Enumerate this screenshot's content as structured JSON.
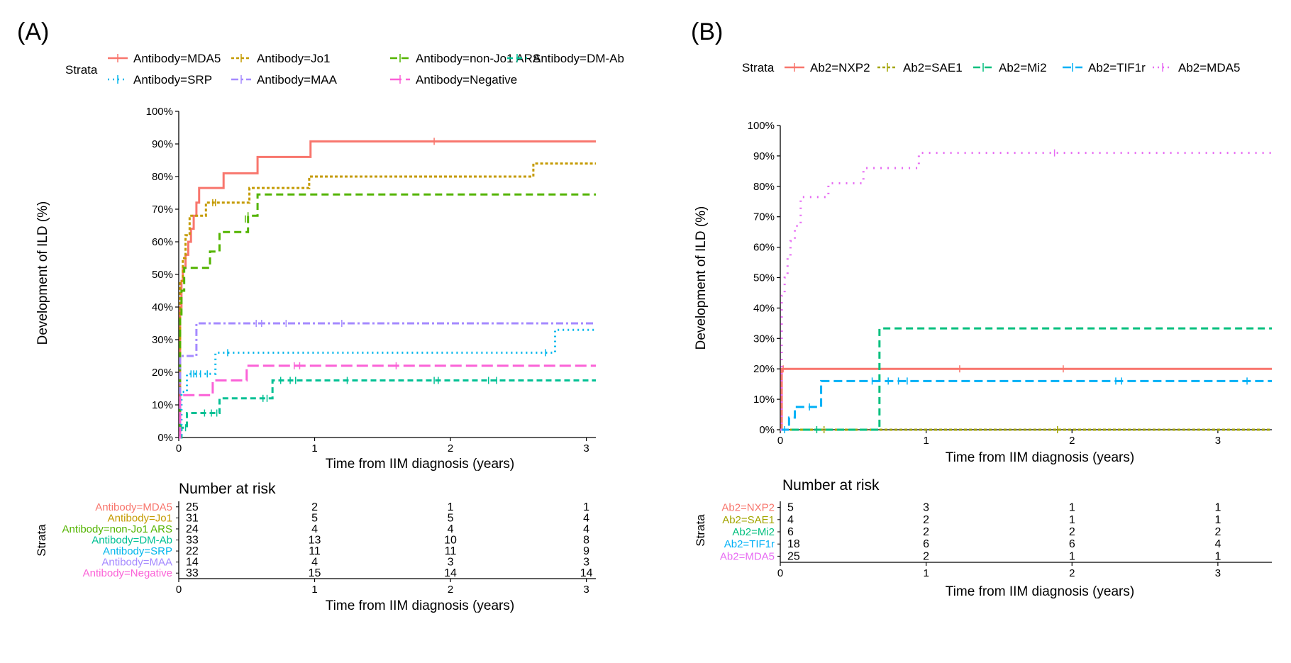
{
  "panels": [
    {
      "label": "(A)",
      "legend_title": "Strata",
      "ylabel": "Development of ILD (%)",
      "xlabel": "Time from IIM diagnosis (years)",
      "risk_title": "Number at risk",
      "risk_ylabel": "Strata",
      "risk_xlabel": "Time from IIM diagnosis (years)",
      "x_ticks": [
        "0",
        "1",
        "2",
        "3"
      ],
      "y_ticks": [
        "0%",
        "10%",
        "20%",
        "30%",
        "40%",
        "50%",
        "60%",
        "70%",
        "80%",
        "90%",
        "100%"
      ]
    },
    {
      "label": "(B)",
      "legend_title": "Strata",
      "ylabel": "Development of ILD (%)",
      "xlabel": "Time from IIM diagnosis (years)",
      "risk_title": "Number at risk",
      "risk_ylabel": "Strata",
      "risk_xlabel": "Time from IIM diagnosis (years)",
      "x_ticks": [
        "0",
        "1",
        "2",
        "3"
      ],
      "y_ticks": [
        "0%",
        "10%",
        "20%",
        "30%",
        "40%",
        "50%",
        "60%",
        "70%",
        "80%",
        "90%",
        "100%"
      ]
    }
  ],
  "chart_data": [
    {
      "type": "line",
      "subtype": "kaplan-meier-cumulative-incidence",
      "title": "(A)",
      "xlabel": "Time from IIM diagnosis (years)",
      "ylabel": "Development of ILD (%)",
      "xlim": [
        0,
        3.07
      ],
      "ylim": [
        0,
        100
      ],
      "x_ticks": [
        0,
        1,
        2,
        3
      ],
      "y_ticks": [
        0,
        10,
        20,
        30,
        40,
        50,
        60,
        70,
        80,
        90,
        100
      ],
      "legend_title": "Strata",
      "legend_position": "top",
      "risk_times": [
        0,
        1,
        2,
        3
      ],
      "series": [
        {
          "name": "Antibody=MDA5",
          "color": "#F8766D",
          "dash": "",
          "steps": [
            [
              0,
              0
            ],
            [
              0.01,
              40
            ],
            [
              0.02,
              48
            ],
            [
              0.03,
              52
            ],
            [
              0.05,
              56
            ],
            [
              0.07,
              60
            ],
            [
              0.09,
              64
            ],
            [
              0.11,
              68
            ],
            [
              0.13,
              72
            ],
            [
              0.15,
              76.5
            ],
            [
              0.33,
              81
            ],
            [
              0.58,
              86
            ],
            [
              0.97,
              90.8
            ],
            [
              3.07,
              90.8
            ]
          ],
          "censored": [
            [
              1.88,
              90.8
            ]
          ],
          "at_risk": [
            25,
            2,
            1,
            1
          ]
        },
        {
          "name": "Antibody=Jo1",
          "color": "#C49A00",
          "dash": "4,3",
          "steps": [
            [
              0,
              0
            ],
            [
              0.01,
              48
            ],
            [
              0.03,
              55
            ],
            [
              0.05,
              62
            ],
            [
              0.08,
              68
            ],
            [
              0.2,
              72
            ],
            [
              0.52,
              76.5
            ],
            [
              0.96,
              80
            ],
            [
              2.6,
              80
            ],
            [
              2.61,
              84
            ],
            [
              3.07,
              84
            ]
          ],
          "censored": [
            [
              0.25,
              72
            ],
            [
              0.27,
              72
            ]
          ],
          "at_risk": [
            31,
            5,
            5,
            4
          ]
        },
        {
          "name": "Antibody=non-Jo1 ARS",
          "color": "#53B400",
          "dash": "10,6",
          "steps": [
            [
              0,
              0
            ],
            [
              0.01,
              37
            ],
            [
              0.02,
              45
            ],
            [
              0.04,
              52
            ],
            [
              0.23,
              57
            ],
            [
              0.3,
              63
            ],
            [
              0.51,
              68
            ],
            [
              0.58,
              74.5
            ],
            [
              3.07,
              74.5
            ]
          ],
          "censored": [
            [
              0.49,
              67
            ],
            [
              0.51,
              68
            ]
          ],
          "at_risk": [
            24,
            4,
            4,
            4
          ]
        },
        {
          "name": "Antibody=DM-Ab",
          "color": "#00C094",
          "dash": "8,5",
          "steps": [
            [
              0,
              0
            ],
            [
              0.02,
              3
            ],
            [
              0.04,
              3
            ],
            [
              0.06,
              7.5
            ],
            [
              0.3,
              12
            ],
            [
              0.69,
              17.5
            ],
            [
              3.07,
              17.5
            ]
          ],
          "censored": [
            [
              0.02,
              3
            ],
            [
              0.05,
              3
            ],
            [
              0.19,
              7.5
            ],
            [
              0.24,
              7.5
            ],
            [
              0.28,
              7.5
            ],
            [
              0.62,
              12
            ],
            [
              0.65,
              12
            ],
            [
              0.75,
              17.5
            ],
            [
              0.82,
              17.5
            ],
            [
              0.86,
              17.5
            ],
            [
              1.24,
              17.5
            ],
            [
              1.88,
              17.5
            ],
            [
              1.91,
              17.5
            ],
            [
              2.28,
              17.5
            ],
            [
              2.34,
              17.5
            ]
          ],
          "at_risk": [
            33,
            13,
            10,
            8
          ]
        },
        {
          "name": "Antibody=SRP",
          "color": "#00B6EB",
          "dash": "2,5",
          "steps": [
            [
              0,
              0
            ],
            [
              0.02,
              14
            ],
            [
              0.06,
              19.5
            ],
            [
              0.27,
              26
            ],
            [
              2.76,
              26
            ],
            [
              2.77,
              33
            ],
            [
              3.07,
              33
            ]
          ],
          "censored": [
            [
              0.09,
              19.5
            ],
            [
              0.11,
              19.5
            ],
            [
              0.13,
              19.5
            ],
            [
              0.16,
              19.5
            ],
            [
              0.21,
              19.5
            ],
            [
              0.36,
              26
            ],
            [
              2.7,
              26
            ]
          ],
          "at_risk": [
            22,
            11,
            11,
            9
          ]
        },
        {
          "name": "Antibody=MAA",
          "color": "#A58AFF",
          "dash": "10,4,3,4",
          "steps": [
            [
              0,
              0
            ],
            [
              0.01,
              25
            ],
            [
              0.13,
              35
            ],
            [
              3.07,
              35
            ]
          ],
          "censored": [
            [
              0.57,
              35
            ],
            [
              0.61,
              35
            ],
            [
              0.79,
              35
            ],
            [
              1.2,
              35
            ]
          ],
          "at_risk": [
            14,
            4,
            3,
            3
          ]
        },
        {
          "name": "Antibody=Negative",
          "color": "#FB61D7",
          "dash": "16,6",
          "steps": [
            [
              0,
              0
            ],
            [
              0.01,
              13
            ],
            [
              0.25,
              17.5
            ],
            [
              0.5,
              22
            ],
            [
              3.07,
              22
            ]
          ],
          "censored": [
            [
              0.85,
              22
            ],
            [
              0.89,
              22
            ],
            [
              1.6,
              22
            ]
          ],
          "at_risk": [
            33,
            15,
            14,
            14
          ]
        }
      ]
    },
    {
      "type": "line",
      "subtype": "kaplan-meier-cumulative-incidence",
      "title": "(B)",
      "xlabel": "Time from IIM diagnosis (years)",
      "ylabel": "Development of ILD (%)",
      "xlim": [
        0,
        3.37
      ],
      "ylim": [
        0,
        100
      ],
      "x_ticks": [
        0,
        1,
        2,
        3
      ],
      "y_ticks": [
        0,
        10,
        20,
        30,
        40,
        50,
        60,
        70,
        80,
        90,
        100
      ],
      "legend_title": "Strata",
      "legend_position": "top",
      "risk_times": [
        0,
        1,
        2,
        3
      ],
      "series": [
        {
          "name": "Ab2=NXP2",
          "color": "#F8766D",
          "dash": "",
          "steps": [
            [
              0,
              0
            ],
            [
              0.01,
              20
            ],
            [
              3.37,
              20
            ]
          ],
          "censored": [
            [
              0.02,
              20
            ],
            [
              1.23,
              20
            ],
            [
              1.94,
              20
            ]
          ],
          "at_risk": [
            5,
            3,
            1,
            1
          ]
        },
        {
          "name": "Ab2=SAE1",
          "color": "#A3A500",
          "dash": "4,3",
          "steps": [
            [
              0,
              0
            ],
            [
              3.37,
              0
            ]
          ],
          "censored": [
            [
              0.3,
              0
            ],
            [
              1.9,
              0
            ]
          ],
          "at_risk": [
            4,
            2,
            1,
            1
          ]
        },
        {
          "name": "Ab2=Mi2",
          "color": "#00BF7D",
          "dash": "10,6",
          "steps": [
            [
              0,
              0
            ],
            [
              0.68,
              33.3
            ],
            [
              3.37,
              33.3
            ]
          ],
          "censored": [
            [
              0.25,
              0
            ]
          ],
          "at_risk": [
            6,
            2,
            2,
            2
          ]
        },
        {
          "name": "Ab2=TIF1r",
          "color": "#00B0F6",
          "dash": "12,6",
          "steps": [
            [
              0,
              0
            ],
            [
              0.06,
              4
            ],
            [
              0.1,
              7.5
            ],
            [
              0.28,
              16
            ],
            [
              3.37,
              16
            ]
          ],
          "censored": [
            [
              0.03,
              0
            ],
            [
              0.2,
              7.5
            ],
            [
              0.63,
              16
            ],
            [
              0.74,
              16
            ],
            [
              0.81,
              16
            ],
            [
              0.87,
              16
            ],
            [
              2.3,
              16
            ],
            [
              2.34,
              16
            ],
            [
              3.2,
              16
            ]
          ],
          "at_risk": [
            18,
            6,
            6,
            4
          ]
        },
        {
          "name": "Ab2=MDA5",
          "color": "#E76BF3",
          "dash": "2,8",
          "steps": [
            [
              0,
              0
            ],
            [
              0.01,
              44
            ],
            [
              0.03,
              50
            ],
            [
              0.05,
              57
            ],
            [
              0.07,
              62
            ],
            [
              0.1,
              67
            ],
            [
              0.14,
              76.5
            ],
            [
              0.33,
              81
            ],
            [
              0.57,
              86
            ],
            [
              0.95,
              91
            ],
            [
              3.37,
              91
            ]
          ],
          "censored": [
            [
              1.88,
              91
            ]
          ],
          "at_risk": [
            25,
            2,
            1,
            1
          ]
        }
      ]
    }
  ]
}
